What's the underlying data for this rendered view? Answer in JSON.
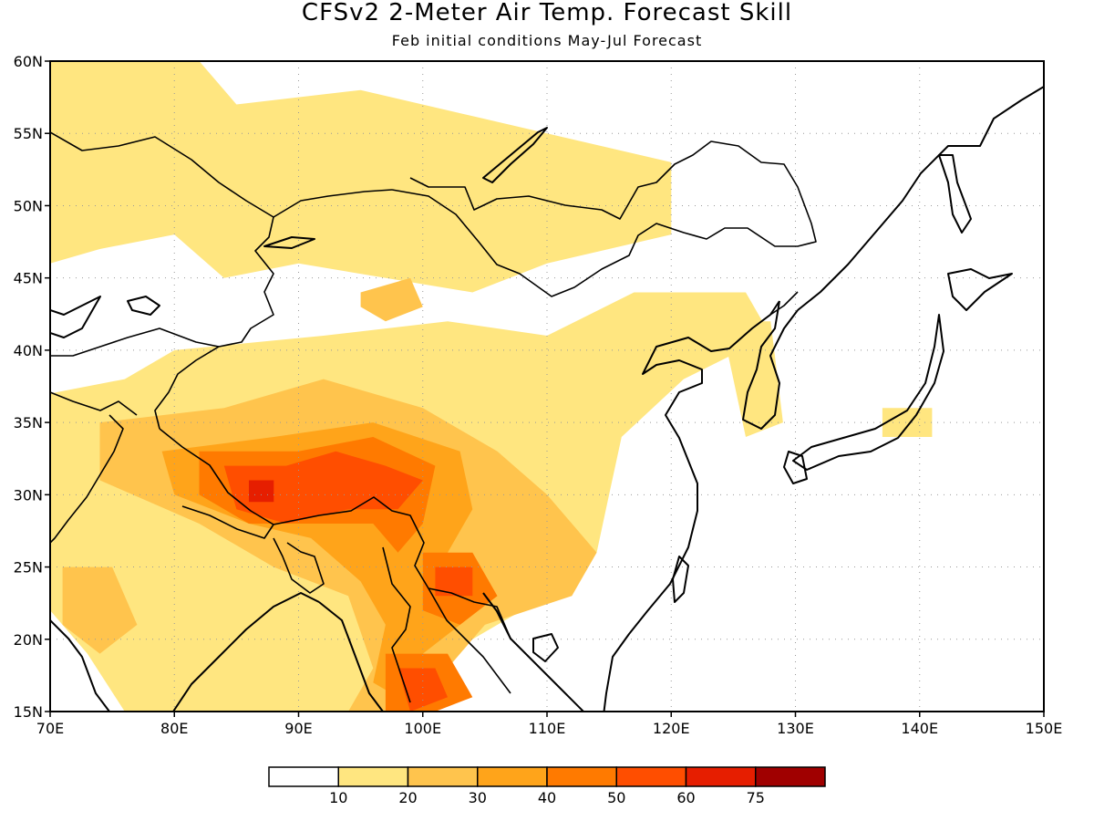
{
  "title": "CFSv2 2-Meter Air Temp. Forecast Skill",
  "subtitle": "Feb initial conditions  May-Jul Forecast",
  "map": {
    "lon_range": [
      70,
      150
    ],
    "lat_range": [
      15,
      60
    ],
    "lon_labels": [
      "70E",
      "80E",
      "90E",
      "100E",
      "110E",
      "120E",
      "130E",
      "140E",
      "150E"
    ],
    "lat_labels": [
      "15N",
      "20N",
      "25N",
      "30N",
      "35N",
      "40N",
      "45N",
      "50N",
      "55N",
      "60N"
    ],
    "gridlines": "dotted"
  },
  "colorbar": {
    "colors": [
      "#ffffff",
      "#ffe680",
      "#ffc44d",
      "#ffa41a",
      "#ff7a00",
      "#ff4e00",
      "#e61e00",
      "#a00000"
    ],
    "labels": [
      "10",
      "20",
      "30",
      "40",
      "50",
      "60",
      "75"
    ]
  },
  "skill_regions": [
    {
      "level": 1,
      "name": "north-band",
      "lonlat": [
        [
          70,
          60
        ],
        [
          82,
          60
        ],
        [
          85,
          57
        ],
        [
          95,
          58
        ],
        [
          105,
          56
        ],
        [
          120,
          53
        ],
        [
          120,
          48
        ],
        [
          110,
          46
        ],
        [
          104,
          44
        ],
        [
          90,
          46
        ],
        [
          84,
          45
        ],
        [
          80,
          48
        ],
        [
          74,
          47
        ],
        [
          70,
          46
        ]
      ]
    },
    {
      "level": 1,
      "name": "central-band",
      "lonlat": [
        [
          80,
          40
        ],
        [
          92,
          41
        ],
        [
          102,
          42
        ],
        [
          110,
          41
        ],
        [
          117,
          44
        ],
        [
          126,
          44
        ],
        [
          128,
          41
        ],
        [
          121,
          38
        ],
        [
          116,
          34
        ],
        [
          115,
          30
        ],
        [
          114,
          26
        ],
        [
          110,
          23
        ],
        [
          104,
          20
        ],
        [
          98,
          17
        ],
        [
          94,
          15
        ],
        [
          76,
          15
        ],
        [
          73,
          19
        ],
        [
          70,
          22
        ],
        [
          70,
          37
        ],
        [
          76,
          38
        ]
      ]
    },
    {
      "level": 1,
      "name": "korea-japan",
      "lonlat": [
        [
          124,
          42
        ],
        [
          128,
          42
        ],
        [
          129,
          35
        ],
        [
          126,
          34
        ]
      ]
    },
    {
      "level": 1,
      "name": "honshu",
      "lonlat": [
        [
          137,
          34
        ],
        [
          141,
          34
        ],
        [
          141,
          36
        ],
        [
          137,
          36
        ]
      ]
    },
    {
      "level": 2,
      "name": "tibet-outer",
      "lonlat": [
        [
          74,
          35
        ],
        [
          84,
          36
        ],
        [
          92,
          38
        ],
        [
          100,
          36
        ],
        [
          106,
          33
        ],
        [
          110,
          30
        ],
        [
          114,
          26
        ],
        [
          112,
          23
        ],
        [
          105,
          21
        ],
        [
          102,
          18
        ],
        [
          100,
          15
        ],
        [
          94,
          15
        ],
        [
          96,
          18
        ],
        [
          94,
          23
        ],
        [
          88,
          25
        ],
        [
          82,
          28
        ],
        [
          74,
          31
        ]
      ]
    },
    {
      "level": 2,
      "name": "mongolia-patch",
      "lonlat": [
        [
          95,
          44
        ],
        [
          99,
          45
        ],
        [
          100,
          43
        ],
        [
          97,
          42
        ],
        [
          95,
          43
        ]
      ]
    },
    {
      "level": 2,
      "name": "india-patch",
      "lonlat": [
        [
          71,
          25
        ],
        [
          75,
          25
        ],
        [
          77,
          21
        ],
        [
          74,
          19
        ],
        [
          71,
          21
        ]
      ]
    },
    {
      "level": 3,
      "name": "tibet-mid",
      "lonlat": [
        [
          79,
          33
        ],
        [
          88,
          34
        ],
        [
          96,
          35
        ],
        [
          103,
          33
        ],
        [
          104,
          29
        ],
        [
          102,
          26
        ],
        [
          106,
          23
        ],
        [
          103,
          21
        ],
        [
          100,
          19
        ],
        [
          98,
          16
        ],
        [
          96,
          17
        ],
        [
          97,
          21
        ],
        [
          95,
          24
        ],
        [
          91,
          27
        ],
        [
          86,
          28
        ],
        [
          80,
          30
        ]
      ]
    },
    {
      "level": 4,
      "name": "tibet-inner",
      "lonlat": [
        [
          82,
          33
        ],
        [
          90,
          33
        ],
        [
          96,
          34
        ],
        [
          101,
          32
        ],
        [
          100,
          28
        ],
        [
          98,
          26
        ],
        [
          96,
          28
        ],
        [
          92,
          28
        ],
        [
          86,
          28
        ],
        [
          82,
          30
        ]
      ]
    },
    {
      "level": 4,
      "name": "yunnan-core",
      "lonlat": [
        [
          100,
          26
        ],
        [
          104,
          26
        ],
        [
          106,
          23
        ],
        [
          103,
          21
        ],
        [
          100,
          22
        ]
      ]
    },
    {
      "level": 4,
      "name": "indochina-core",
      "lonlat": [
        [
          97,
          19
        ],
        [
          102,
          19
        ],
        [
          104,
          16
        ],
        [
          101,
          15
        ],
        [
          97,
          15
        ]
      ]
    },
    {
      "level": 5,
      "name": "tibet-core",
      "lonlat": [
        [
          84,
          32
        ],
        [
          89,
          32
        ],
        [
          93,
          33
        ],
        [
          97,
          32
        ],
        [
          100,
          31
        ],
        [
          98,
          29
        ],
        [
          94,
          29
        ],
        [
          89,
          28
        ],
        [
          85,
          29
        ]
      ]
    },
    {
      "level": 5,
      "name": "yunnan-inner",
      "lonlat": [
        [
          101,
          25
        ],
        [
          104,
          25
        ],
        [
          104,
          23
        ],
        [
          101,
          23
        ]
      ]
    },
    {
      "level": 5,
      "name": "indochina-inner",
      "lonlat": [
        [
          98,
          18
        ],
        [
          101,
          18
        ],
        [
          102,
          16
        ],
        [
          99,
          15
        ]
      ]
    },
    {
      "level": 6,
      "name": "tibet-max",
      "lonlat": [
        [
          86,
          31
        ],
        [
          88,
          31
        ],
        [
          88,
          29.5
        ],
        [
          86,
          29.5
        ]
      ]
    }
  ]
}
